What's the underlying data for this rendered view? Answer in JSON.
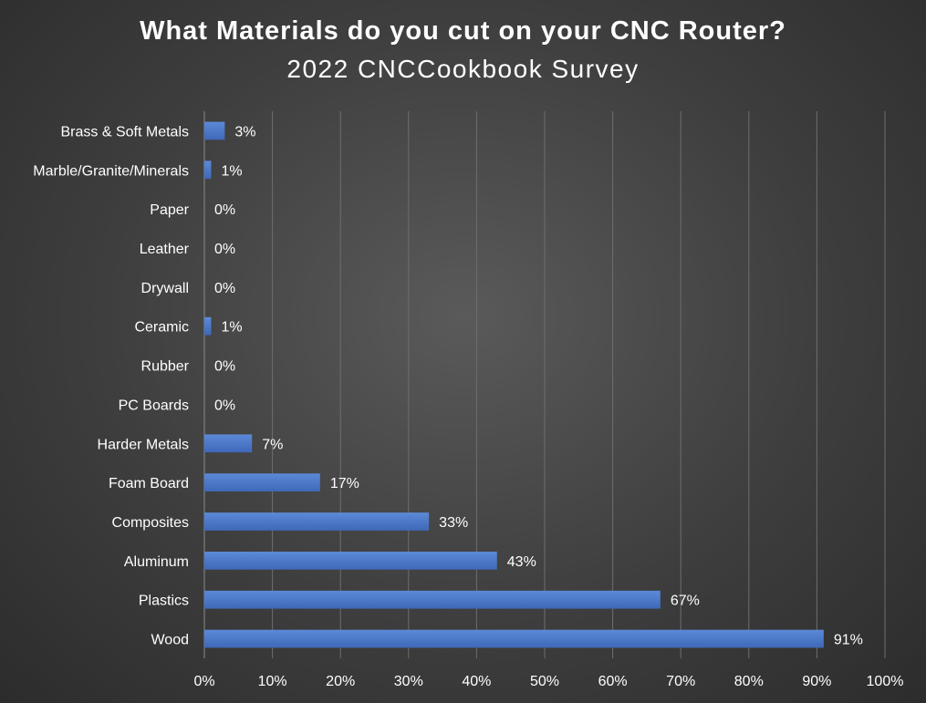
{
  "chart_data": {
    "type": "bar",
    "orientation": "horizontal",
    "title": "What Materials do you cut on your CNC Router?",
    "subtitle": "2022 CNCCookbook Survey",
    "categories": [
      "Brass & Soft Metals",
      "Marble/Granite/Minerals",
      "Paper",
      "Leather",
      "Drywall",
      "Ceramic",
      "Rubber",
      "PC Boards",
      "Harder Metals",
      "Foam Board",
      "Composites",
      "Aluminum",
      "Plastics",
      "Wood"
    ],
    "values": [
      3,
      1,
      0,
      0,
      0,
      1,
      0,
      0,
      7,
      17,
      33,
      43,
      67,
      91
    ],
    "data_labels": [
      "3%",
      "1%",
      "0%",
      "0%",
      "0%",
      "1%",
      "0%",
      "0%",
      "7%",
      "17%",
      "33%",
      "43%",
      "67%",
      "91%"
    ],
    "xlim": [
      0,
      100
    ],
    "x_ticks": [
      0,
      10,
      20,
      30,
      40,
      50,
      60,
      70,
      80,
      90,
      100
    ],
    "x_tick_labels": [
      "0%",
      "10%",
      "20%",
      "30%",
      "40%",
      "50%",
      "60%",
      "70%",
      "80%",
      "90%",
      "100%"
    ],
    "xlabel": "",
    "ylabel": "",
    "grid": true,
    "legend": "none",
    "bar_color": "#4472c4",
    "background_color": "#404040"
  }
}
